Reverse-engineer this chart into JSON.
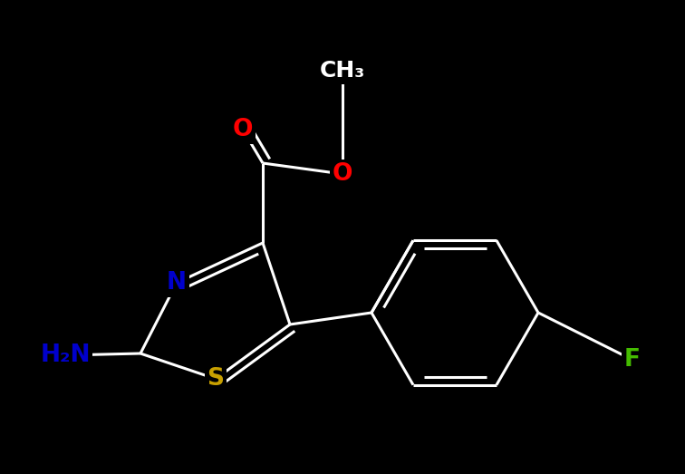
{
  "background_color": "#000000",
  "bond_color": "#ffffff",
  "atom_colors": {
    "O": "#ff0000",
    "N": "#0000cc",
    "S": "#c8a000",
    "F": "#44bb00",
    "C": "#ffffff",
    "H": "#ffffff"
  },
  "fig_width": 7.56,
  "fig_height": 5.23,
  "dpi": 100
}
